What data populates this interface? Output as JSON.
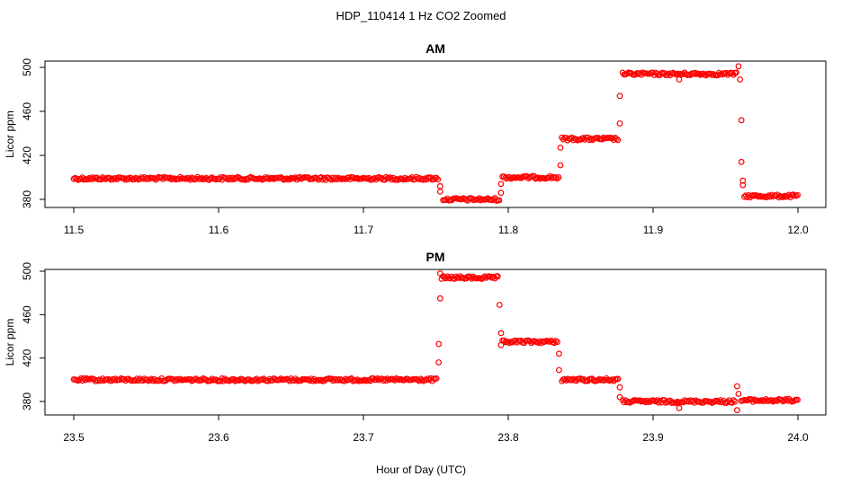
{
  "figure": {
    "title": "HDP_110414  1 Hz CO2 Zoomed",
    "xlabel": "Hour of Day (UTC)"
  },
  "chart_data": [
    {
      "type": "scatter",
      "title": "AM",
      "ylabel": "Licor ppm",
      "xlim": [
        11.5,
        12.0
      ],
      "ylim": [
        375,
        505
      ],
      "x_ticks": [
        11.5,
        11.6,
        11.7,
        11.8,
        11.9,
        12.0
      ],
      "x_tick_labels": [
        "11.5",
        "11.6",
        "11.7",
        "11.8",
        "11.9",
        "12.0"
      ],
      "y_ticks": [
        380,
        420,
        460,
        500
      ],
      "y_tick_labels": [
        "380",
        "420",
        "460",
        "500"
      ],
      "marker": "open-circle",
      "color": "#ff0000",
      "segments": [
        {
          "x_start": 11.5,
          "x_end": 11.752,
          "y": 399
        },
        {
          "x_start": 11.755,
          "x_end": 11.794,
          "y": 380
        },
        {
          "x_start": 11.796,
          "x_end": 11.835,
          "y": 400
        },
        {
          "x_start": 11.837,
          "x_end": 11.876,
          "y": 435
        },
        {
          "x_start": 11.879,
          "x_end": 11.958,
          "y": 494
        },
        {
          "x_start": 11.963,
          "x_end": 12.0,
          "y": 383
        }
      ],
      "transitions": [
        {
          "x": 11.753,
          "y": 392
        },
        {
          "x": 11.753,
          "y": 387
        },
        {
          "x": 11.795,
          "y": 394
        },
        {
          "x": 11.795,
          "y": 386
        },
        {
          "x": 11.836,
          "x2": 11.836,
          "y": 427
        },
        {
          "x": 11.836,
          "y": 411
        },
        {
          "x": 11.877,
          "y": 474
        },
        {
          "x": 11.877,
          "y": 449
        },
        {
          "x": 11.918,
          "y": 489
        },
        {
          "x": 11.959,
          "y": 501
        },
        {
          "x": 11.96,
          "y": 489
        },
        {
          "x": 11.961,
          "y": 452
        },
        {
          "x": 11.961,
          "y": 414
        },
        {
          "x": 11.962,
          "y": 397
        },
        {
          "x": 11.962,
          "y": 393
        }
      ]
    },
    {
      "type": "scatter",
      "title": "PM",
      "ylabel": "Licor ppm",
      "xlim": [
        23.5,
        24.0
      ],
      "ylim": [
        368,
        505
      ],
      "x_ticks": [
        23.5,
        23.6,
        23.7,
        23.8,
        23.9,
        24.0
      ],
      "x_tick_labels": [
        "23.5",
        "23.6",
        "23.7",
        "23.8",
        "23.9",
        "24.0"
      ],
      "y_ticks": [
        380,
        420,
        460,
        500
      ],
      "y_tick_labels": [
        "380",
        "420",
        "460",
        "500"
      ],
      "marker": "open-circle",
      "color": "#ff0000",
      "segments": [
        {
          "x_start": 23.5,
          "x_end": 23.751,
          "y": 400
        },
        {
          "x_start": 23.754,
          "x_end": 23.793,
          "y": 494
        },
        {
          "x_start": 23.796,
          "x_end": 23.834,
          "y": 435
        },
        {
          "x_start": 23.837,
          "x_end": 23.876,
          "y": 400
        },
        {
          "x_start": 23.879,
          "x_end": 23.957,
          "y": 380
        },
        {
          "x_start": 23.961,
          "x_end": 24.0,
          "y": 381
        }
      ],
      "transitions": [
        {
          "x": 23.752,
          "y": 416
        },
        {
          "x": 23.752,
          "y": 433
        },
        {
          "x": 23.753,
          "y": 475
        },
        {
          "x": 23.753,
          "y": 498
        },
        {
          "x": 23.794,
          "y": 469
        },
        {
          "x": 23.795,
          "y": 443
        },
        {
          "x": 23.795,
          "y": 432
        },
        {
          "x": 23.835,
          "y": 424
        },
        {
          "x": 23.835,
          "y": 409
        },
        {
          "x": 23.877,
          "y": 393
        },
        {
          "x": 23.877,
          "y": 384
        },
        {
          "x": 23.918,
          "y": 374
        },
        {
          "x": 23.958,
          "y": 394
        },
        {
          "x": 23.958,
          "y": 372
        },
        {
          "x": 23.959,
          "y": 387
        }
      ]
    }
  ]
}
